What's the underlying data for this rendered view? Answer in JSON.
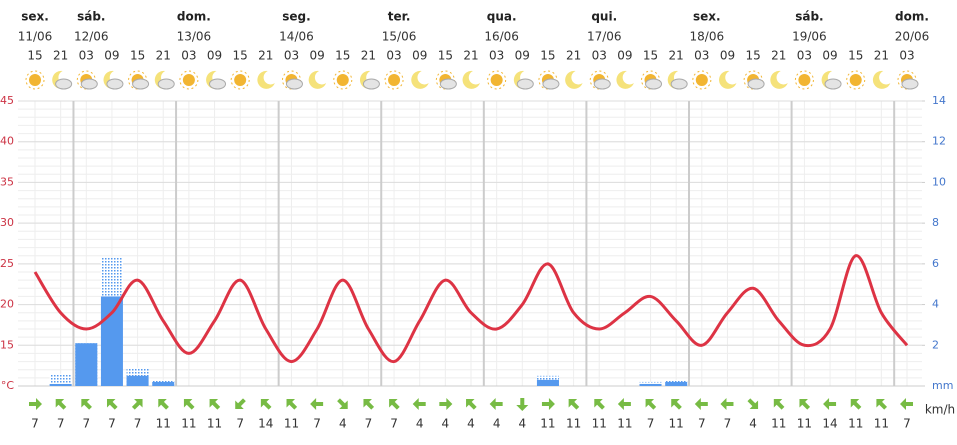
{
  "chart_data": {
    "type": "meteogram",
    "days": [
      {
        "name": "sex.",
        "date": "11/06"
      },
      {
        "name": "sáb.",
        "date": "12/06"
      },
      {
        "name": "dom.",
        "date": "13/06"
      },
      {
        "name": "seg.",
        "date": "14/06"
      },
      {
        "name": "ter.",
        "date": "15/06"
      },
      {
        "name": "qua.",
        "date": "16/06"
      },
      {
        "name": "qui.",
        "date": "17/06"
      },
      {
        "name": "sex.",
        "date": "18/06"
      },
      {
        "name": "sáb.",
        "date": "19/06"
      },
      {
        "name": "dom.",
        "date": "20/06"
      }
    ],
    "categories": [
      "15",
      "21",
      "03",
      "09",
      "15",
      "21",
      "03",
      "09",
      "15",
      "21",
      "03",
      "09",
      "15",
      "21",
      "03",
      "09",
      "15",
      "21",
      "03",
      "09",
      "15",
      "21",
      "03",
      "09",
      "15",
      "21",
      "03",
      "09",
      "15",
      "21",
      "03",
      "09",
      "15",
      "21",
      "03"
    ],
    "temperature": {
      "color": "#dd3344",
      "values": [
        24,
        19,
        17,
        19,
        23,
        18,
        14,
        18,
        23,
        17,
        13,
        17,
        23,
        17,
        13,
        18,
        23,
        19,
        17,
        20,
        25,
        19,
        17,
        19,
        21,
        18,
        15,
        19,
        22,
        18,
        15,
        17,
        26,
        19,
        15
      ]
    },
    "precipitation": {
      "color": "#5599ee",
      "axis": "y2",
      "values": [
        0,
        0.1,
        2.1,
        4.4,
        0.5,
        0.2,
        0,
        0,
        0,
        0,
        0,
        0,
        0,
        0,
        0,
        0,
        0,
        0,
        0,
        0,
        0.3,
        0,
        0,
        0,
        0.1,
        0.2,
        0,
        0,
        0,
        0,
        0,
        0,
        0,
        0,
        0
      ]
    },
    "precipitation_max": {
      "color": "#5599ee",
      "axis": "y2",
      "values": [
        0,
        0.6,
        2.1,
        6.3,
        0.9,
        0.3,
        0,
        0,
        0,
        0,
        0,
        0,
        0,
        0,
        0,
        0,
        0,
        0,
        0,
        0,
        0.5,
        0,
        0,
        0,
        0.2,
        0.3,
        0,
        0,
        0,
        0,
        0,
        0,
        0,
        0,
        0
      ]
    },
    "ylim": [
      10,
      45
    ],
    "yticks": [
      {
        "value": 10,
        "label": "°C"
      },
      15,
      20,
      25,
      30,
      35,
      40,
      45
    ],
    "y2lim": [
      0,
      14
    ],
    "y2ticks": [
      {
        "value": 0,
        "label": "mm"
      },
      2,
      4,
      6,
      8,
      10,
      12,
      14
    ],
    "wind": {
      "unit": "km/h",
      "color": "#77bb44",
      "direction": [
        0,
        225,
        225,
        225,
        315,
        225,
        225,
        225,
        135,
        225,
        225,
        180,
        45,
        225,
        225,
        180,
        0,
        225,
        180,
        90,
        0,
        225,
        225,
        180,
        225,
        225,
        180,
        180,
        45,
        225,
        225,
        180,
        225,
        225,
        180
      ],
      "speed": [
        7,
        7,
        7,
        7,
        7,
        11,
        11,
        11,
        7,
        14,
        11,
        7,
        4,
        7,
        7,
        4,
        4,
        4,
        4,
        4,
        11,
        11,
        11,
        11,
        7,
        11,
        7,
        7,
        4,
        11,
        11,
        14,
        11,
        11,
        7
      ]
    },
    "grid": true
  }
}
